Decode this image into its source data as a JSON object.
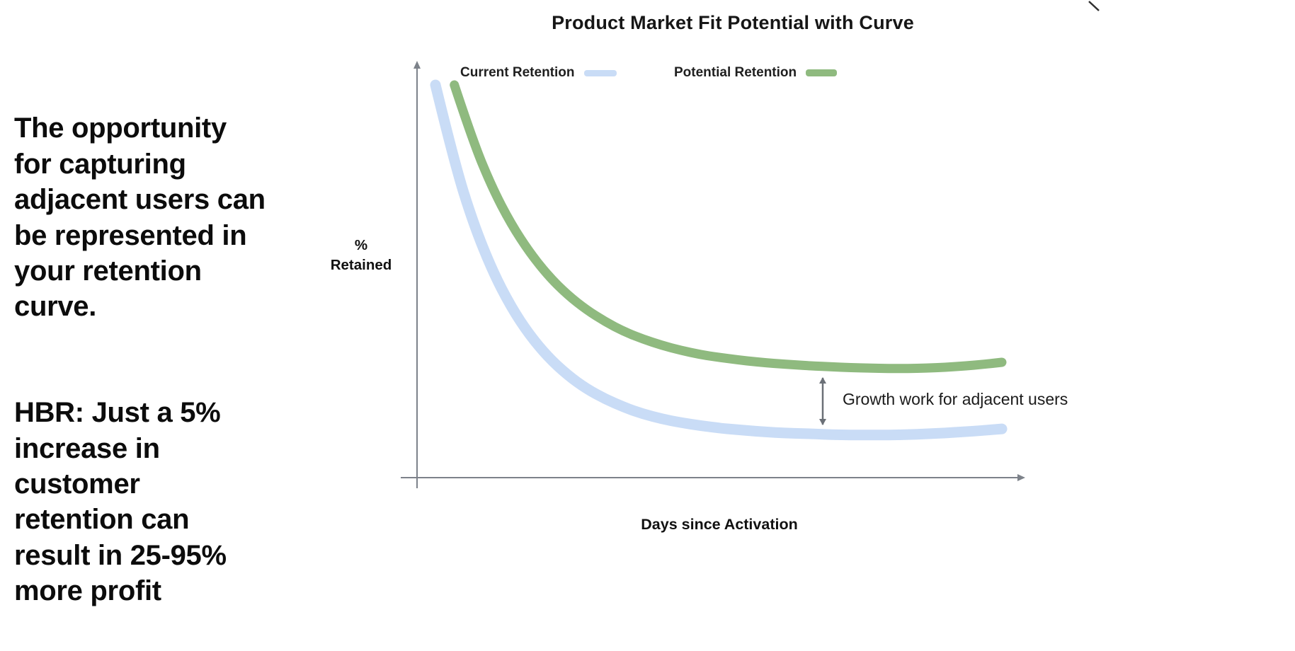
{
  "slide": {
    "background_color": "#ffffff",
    "text_color": "#0c0c0c",
    "insight_text_1": "The opportunity\nfor capturing\nadjacent users can\nbe represented in\nyour retention\ncurve.",
    "insight_text_2": "HBR: Just a 5%\nincrease in\ncustomer\nretention can\nresult in 25-95%\nmore profit"
  },
  "chart_data": {
    "type": "line",
    "title": "Product Market Fit Potential with Curve",
    "xlabel": "Days since Activation",
    "ylabel": "% Retained",
    "ylim": [
      0,
      100
    ],
    "x_unit": "days",
    "grid": false,
    "legend_position": "top",
    "axis_color": "#7d828a",
    "series": [
      {
        "name": "Current Retention",
        "color": "#c9dcf6",
        "x": [
          0,
          2,
          4,
          6,
          8,
          10,
          12,
          14,
          16,
          18,
          20,
          22,
          24,
          26,
          28,
          30,
          32,
          34,
          36,
          38,
          40,
          42,
          44,
          46,
          48,
          50,
          52,
          54,
          56,
          58,
          60
        ],
        "values": [
          95,
          76.2,
          61.6,
          50.2,
          41.3,
          34.4,
          29,
          24.8,
          21.5,
          19,
          17,
          15.4,
          14.2,
          13.3,
          12.6,
          12,
          11.6,
          11.2,
          10.9,
          10.7,
          10.6,
          10.4,
          10.3,
          10.3,
          10.3,
          10.4,
          10.6,
          10.8,
          11.1,
          11.4,
          11.8
        ]
      },
      {
        "name": "Potential Retention",
        "color": "#8fba7f",
        "x": [
          2,
          4,
          6,
          8,
          10,
          12,
          14,
          16,
          18,
          20,
          22,
          24,
          26,
          28,
          30,
          32,
          34,
          36,
          38,
          40,
          42,
          44,
          46,
          48,
          50,
          52,
          54,
          56,
          58,
          60
        ],
        "values": [
          95,
          81.2,
          70.2,
          61.4,
          54.4,
          48.7,
          44.2,
          40.6,
          37.7,
          35.3,
          33.5,
          32,
          30.8,
          29.8,
          29.1,
          28.5,
          28,
          27.6,
          27.3,
          27,
          26.8,
          26.6,
          26.5,
          26.4,
          26.4,
          26.5,
          26.7,
          27,
          27.4,
          27.9
        ]
      }
    ],
    "annotation": {
      "text": "Growth work for adjacent users",
      "arrow_color": "#6b7077",
      "at_x_days": 41,
      "from_series": "Current Retention",
      "to_series": "Potential Retention"
    }
  }
}
